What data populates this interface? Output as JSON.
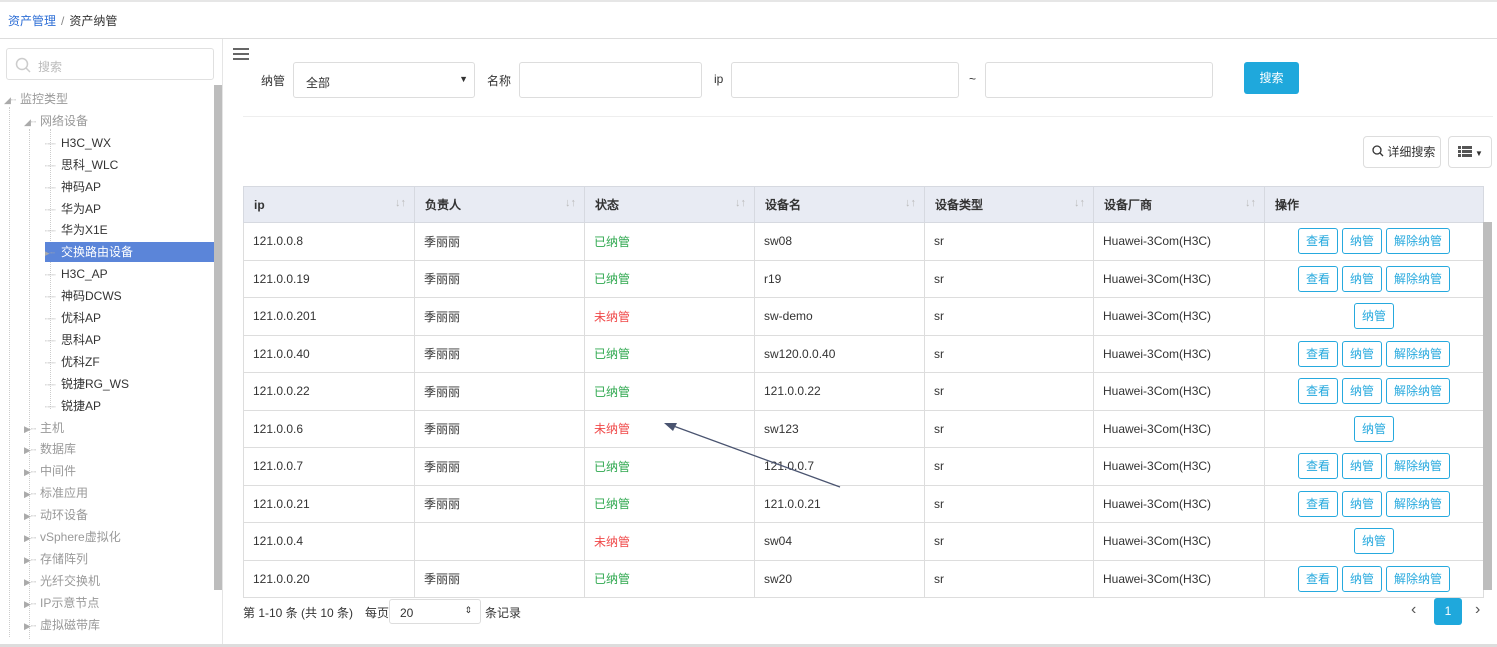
{
  "breadcrumb": {
    "parent": "资产管理",
    "sep": "/",
    "current": "资产纳管"
  },
  "sidebar": {
    "search_placeholder": "搜索",
    "tree": [
      {
        "label": "监控类型",
        "level": 0,
        "toggle": "expanded"
      },
      {
        "label": "网络设备",
        "level": 1,
        "toggle": "expanded"
      },
      {
        "label": "H3C_WX",
        "level": 2
      },
      {
        "label": "思科_WLC",
        "level": 2
      },
      {
        "label": "神码AP",
        "level": 2
      },
      {
        "label": "华为AP",
        "level": 2
      },
      {
        "label": "华为X1E",
        "level": 2
      },
      {
        "label": "交换路由设备",
        "level": 2,
        "selected": true
      },
      {
        "label": "H3C_AP",
        "level": 2
      },
      {
        "label": "神码DCWS",
        "level": 2
      },
      {
        "label": "优科AP",
        "level": 2
      },
      {
        "label": "思科AP",
        "level": 2
      },
      {
        "label": "优科ZF",
        "level": 2
      },
      {
        "label": "锐捷RG_WS",
        "level": 2
      },
      {
        "label": "锐捷AP",
        "level": 2
      },
      {
        "label": "主机",
        "level": 1,
        "toggle": "collapsed"
      },
      {
        "label": "数据库",
        "level": 1,
        "toggle": "collapsed"
      },
      {
        "label": "中间件",
        "level": 1,
        "toggle": "collapsed"
      },
      {
        "label": "标准应用",
        "level": 1,
        "toggle": "collapsed"
      },
      {
        "label": "动环设备",
        "level": 1,
        "toggle": "collapsed"
      },
      {
        "label": "vSphere虚拟化",
        "level": 1,
        "toggle": "collapsed"
      },
      {
        "label": "存储阵列",
        "level": 1,
        "toggle": "collapsed"
      },
      {
        "label": "光纤交换机",
        "level": 1,
        "toggle": "collapsed"
      },
      {
        "label": "IP示意节点",
        "level": 1,
        "toggle": "collapsed"
      },
      {
        "label": "虚拟磁带库",
        "level": 1,
        "toggle": "collapsed"
      }
    ]
  },
  "filter": {
    "manage_label": "纳管",
    "manage_value": "全部",
    "name_label": "名称",
    "name_value": "",
    "ip_label": "ip",
    "ip_from": "",
    "tilde": "~",
    "ip_to": "",
    "search_button": "搜索"
  },
  "toolbar": {
    "advanced_search": "详细搜索",
    "columns_icon": "list-icon"
  },
  "table": {
    "headers": [
      "ip",
      "负责人",
      "状态",
      "设备名",
      "设备类型",
      "设备厂商",
      "操作"
    ],
    "rows": [
      {
        "ip": "121.0.0.8",
        "owner": "季丽丽",
        "status": "已纳管",
        "name": "sw08",
        "type": "sr",
        "vendor": "Huawei-3Com(H3C)",
        "managed": true
      },
      {
        "ip": "121.0.0.19",
        "owner": "季丽丽",
        "status": "已纳管",
        "name": "r19",
        "type": "sr",
        "vendor": "Huawei-3Com(H3C)",
        "managed": true
      },
      {
        "ip": "121.0.0.201",
        "owner": "季丽丽",
        "status": "未纳管",
        "name": "sw-demo",
        "type": "sr",
        "vendor": "Huawei-3Com(H3C)",
        "managed": false
      },
      {
        "ip": "121.0.0.40",
        "owner": "季丽丽",
        "status": "已纳管",
        "name": "sw120.0.0.40",
        "type": "sr",
        "vendor": "Huawei-3Com(H3C)",
        "managed": true
      },
      {
        "ip": "121.0.0.22",
        "owner": "季丽丽",
        "status": "已纳管",
        "name": "121.0.0.22",
        "type": "sr",
        "vendor": "Huawei-3Com(H3C)",
        "managed": true
      },
      {
        "ip": "121.0.0.6",
        "owner": "季丽丽",
        "status": "未纳管",
        "name": "sw123",
        "type": "sr",
        "vendor": "Huawei-3Com(H3C)",
        "managed": false
      },
      {
        "ip": "121.0.0.7",
        "owner": "季丽丽",
        "status": "已纳管",
        "name": "121.0.0.7",
        "type": "sr",
        "vendor": "Huawei-3Com(H3C)",
        "managed": true
      },
      {
        "ip": "121.0.0.21",
        "owner": "季丽丽",
        "status": "已纳管",
        "name": "121.0.0.21",
        "type": "sr",
        "vendor": "Huawei-3Com(H3C)",
        "managed": true
      },
      {
        "ip": "121.0.0.4",
        "owner": "",
        "status": "未纳管",
        "name": "sw04",
        "type": "sr",
        "vendor": "Huawei-3Com(H3C)",
        "managed": false
      },
      {
        "ip": "121.0.0.20",
        "owner": "季丽丽",
        "status": "已纳管",
        "name": "sw20",
        "type": "sr",
        "vendor": "Huawei-3Com(H3C)",
        "managed": true
      }
    ],
    "actions": {
      "view": "查看",
      "manage": "纳管",
      "unmanage": "解除纳管"
    }
  },
  "pagination": {
    "summary": "第 1-10 条 (共 10 条)",
    "per_page_label": "每页",
    "per_page": "20",
    "records_label": "条记录",
    "current_page": "1"
  },
  "colors": {
    "accent": "#1fa8dc",
    "managed": "#2fa84f",
    "unmanaged": "#f04848",
    "selected": "#5b85d9"
  }
}
